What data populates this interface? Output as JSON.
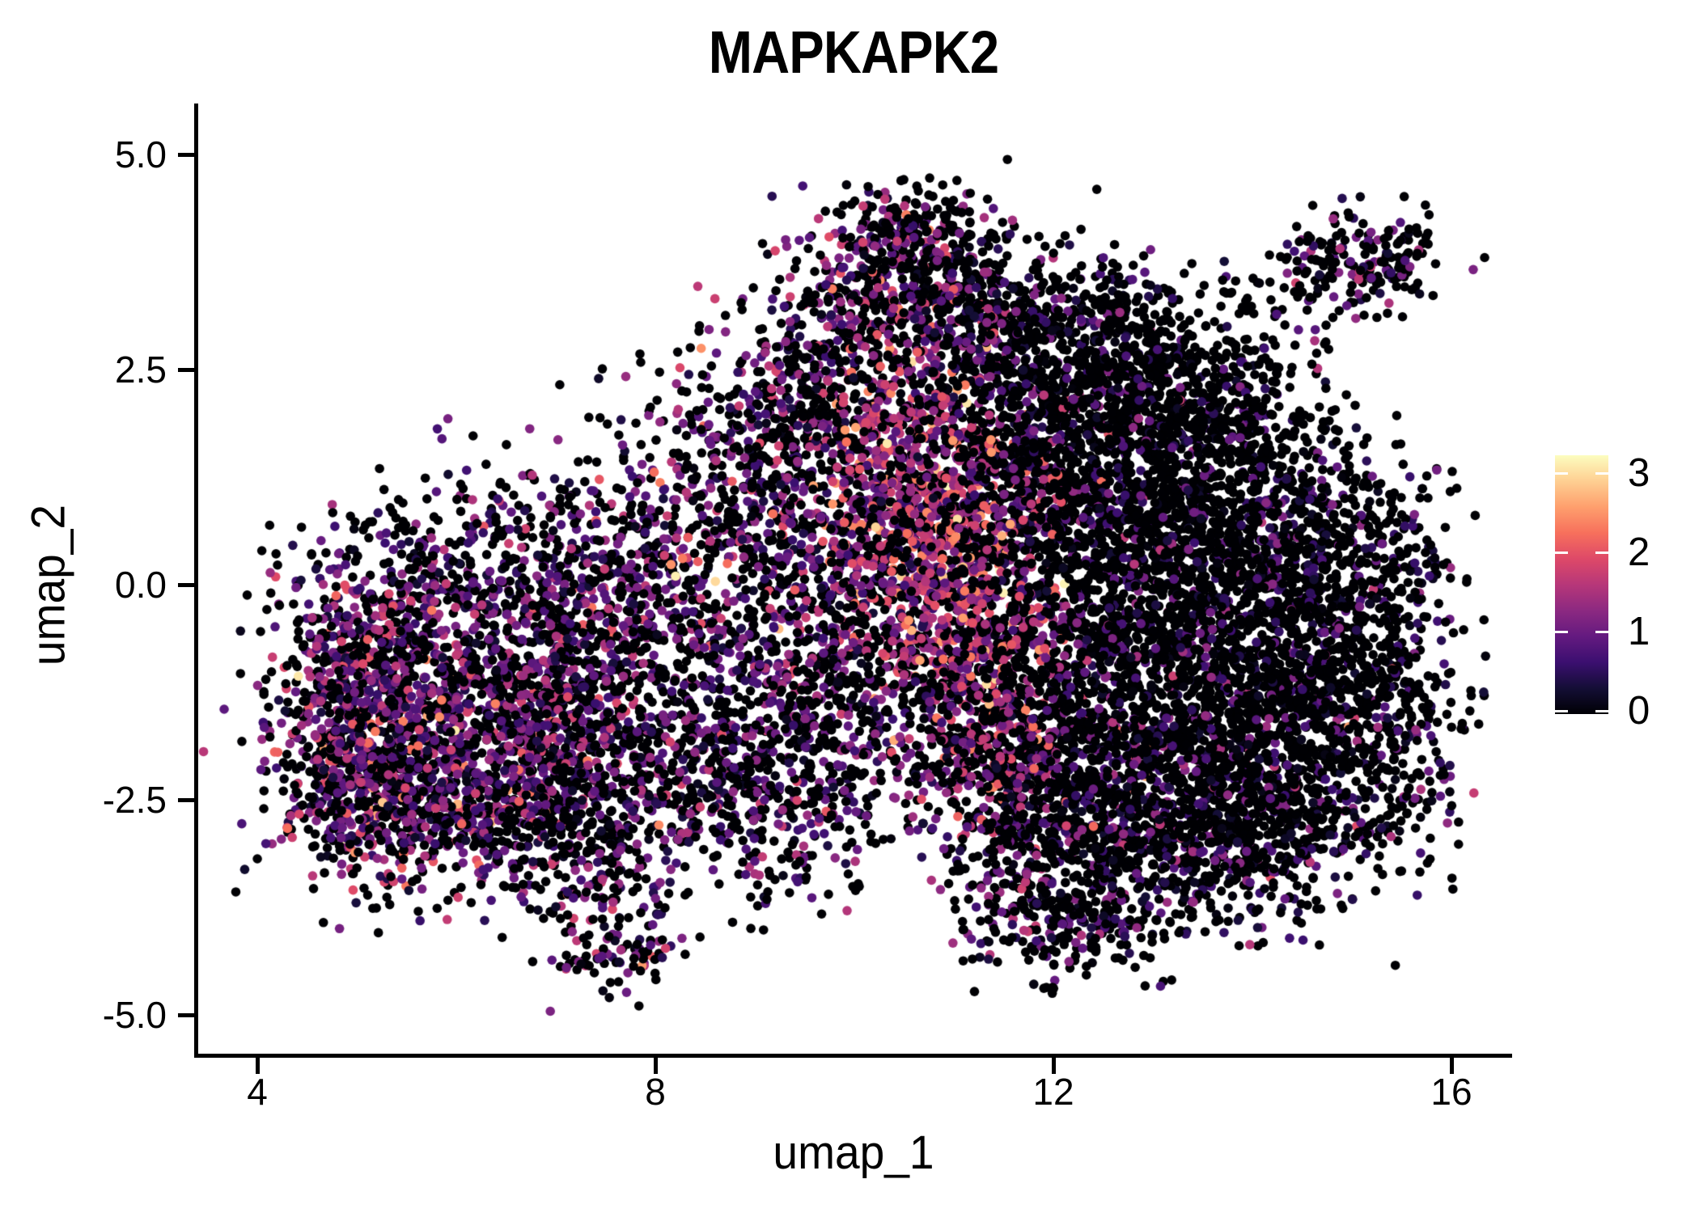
{
  "figure": {
    "background": "#ffffff",
    "text_color": "#000000"
  },
  "chart_data": {
    "type": "scatter",
    "title": "MAPKAPK2",
    "xlabel": "umap_1",
    "ylabel": "umap_2",
    "xlim": [
      3.39,
      16.59
    ],
    "ylim": [
      -5.47,
      5.57
    ],
    "x_ticks": [
      4,
      8,
      12,
      16
    ],
    "x_tick_labels": [
      "4",
      "8",
      "12",
      "16"
    ],
    "y_ticks": [
      5.0,
      2.5,
      0.0,
      -2.5,
      -5.0
    ],
    "y_tick_labels": [
      "5.0",
      "2.5",
      "0.0",
      "-2.5",
      "-5.0"
    ],
    "grid": false,
    "legend_position": "right",
    "point_radius_px": 5.8,
    "seed": 7,
    "colorbar": {
      "title": "",
      "tick_values": [
        3,
        2,
        1,
        0
      ],
      "tick_labels": [
        "3",
        "2",
        "1",
        "0"
      ],
      "vmin": 0,
      "vmax": 3.17,
      "colormap": "magma",
      "stops": [
        [
          0.0,
          "#000004"
        ],
        [
          0.1,
          "#140e36"
        ],
        [
          0.2,
          "#3b0f70"
        ],
        [
          0.3,
          "#641a80"
        ],
        [
          0.4,
          "#8c2981"
        ],
        [
          0.5,
          "#b73779"
        ],
        [
          0.6,
          "#de4968"
        ],
        [
          0.7,
          "#f7705c"
        ],
        [
          0.8,
          "#fe9f6d"
        ],
        [
          0.9,
          "#fecf92"
        ],
        [
          1.0,
          "#fcfdbf"
        ]
      ]
    },
    "sampling_model": "UMAP feature plot: cells drawn from gaussian sub-clusters; x,y = cluster center (umap coords), sx,sy = spread, n = cells, p0 = fraction with zero expression, mu/sigma = expression level distribution (color scale 0-3)",
    "clusters": [
      {
        "x": 5.55,
        "y": -1.6,
        "sx": 0.75,
        "sy": 0.75,
        "n": 650,
        "p0": 0.4,
        "mu": 1.05,
        "sigma": 0.55
      },
      {
        "x": 6.55,
        "y": -1.1,
        "sx": 0.75,
        "sy": 0.8,
        "n": 600,
        "p0": 0.45,
        "mu": 1.0,
        "sigma": 0.55
      },
      {
        "x": 5.2,
        "y": -0.55,
        "sx": 0.5,
        "sy": 0.5,
        "n": 280,
        "p0": 0.52,
        "mu": 0.95,
        "sigma": 0.5
      },
      {
        "x": 4.95,
        "y": -2.45,
        "sx": 0.4,
        "sy": 0.5,
        "n": 260,
        "p0": 0.45,
        "mu": 1.05,
        "sigma": 0.6
      },
      {
        "x": 6.1,
        "y": -2.7,
        "sx": 0.65,
        "sy": 0.5,
        "n": 420,
        "p0": 0.45,
        "mu": 0.95,
        "sigma": 0.55
      },
      {
        "x": 7.2,
        "y": -2.1,
        "sx": 0.55,
        "sy": 0.6,
        "n": 330,
        "p0": 0.5,
        "mu": 0.9,
        "sigma": 0.5
      },
      {
        "x": 7.3,
        "y": -0.4,
        "sx": 0.6,
        "sy": 0.7,
        "n": 340,
        "p0": 0.52,
        "mu": 0.9,
        "sigma": 0.5
      },
      {
        "x": 6.3,
        "y": 0.4,
        "sx": 0.9,
        "sy": 0.5,
        "n": 260,
        "p0": 0.62,
        "mu": 0.8,
        "sigma": 0.45
      },
      {
        "x": 5.0,
        "y": -1.5,
        "sx": 0.35,
        "sy": 0.6,
        "n": 180,
        "p0": 0.42,
        "mu": 1.1,
        "sigma": 0.6
      },
      {
        "x": 7.35,
        "y": -3.5,
        "sx": 0.3,
        "sy": 0.4,
        "n": 100,
        "p0": 0.5,
        "mu": 0.95,
        "sigma": 0.55
      },
      {
        "x": 7.6,
        "y": -4.3,
        "sx": 0.35,
        "sy": 0.22,
        "n": 80,
        "p0": 0.52,
        "mu": 0.9,
        "sigma": 0.55
      },
      {
        "x": 8.4,
        "y": -0.7,
        "sx": 0.7,
        "sy": 1.1,
        "n": 520,
        "p0": 0.55,
        "mu": 0.85,
        "sigma": 0.5
      },
      {
        "x": 8.3,
        "y": -2.45,
        "sx": 0.75,
        "sy": 0.6,
        "n": 380,
        "p0": 0.58,
        "mu": 0.8,
        "sigma": 0.5
      },
      {
        "x": 8.85,
        "y": 1.2,
        "sx": 0.65,
        "sy": 0.8,
        "n": 340,
        "p0": 0.5,
        "mu": 1.0,
        "sigma": 0.55
      },
      {
        "x": 9.5,
        "y": -2.0,
        "sx": 0.55,
        "sy": 0.8,
        "n": 350,
        "p0": 0.55,
        "mu": 0.85,
        "sigma": 0.5
      },
      {
        "x": 10.6,
        "y": 4.1,
        "sx": 0.38,
        "sy": 0.28,
        "n": 190,
        "p0": 0.6,
        "mu": 1.0,
        "sigma": 0.55
      },
      {
        "x": 10.1,
        "y": 3.3,
        "sx": 0.5,
        "sy": 0.45,
        "n": 260,
        "p0": 0.5,
        "mu": 1.1,
        "sigma": 0.6
      },
      {
        "x": 10.9,
        "y": 3.35,
        "sx": 0.45,
        "sy": 0.45,
        "n": 240,
        "p0": 0.62,
        "mu": 0.9,
        "sigma": 0.5
      },
      {
        "x": 9.6,
        "y": 2.3,
        "sx": 0.5,
        "sy": 0.55,
        "n": 260,
        "p0": 0.52,
        "mu": 1.05,
        "sigma": 0.55
      },
      {
        "x": 11.5,
        "y": 2.9,
        "sx": 0.45,
        "sy": 0.5,
        "n": 240,
        "p0": 0.68,
        "mu": 0.8,
        "sigma": 0.5
      },
      {
        "x": 10.55,
        "y": 1.6,
        "sx": 0.5,
        "sy": 0.65,
        "n": 440,
        "p0": 0.3,
        "mu": 1.5,
        "sigma": 0.55
      },
      {
        "x": 10.9,
        "y": 0.45,
        "sx": 0.5,
        "sy": 0.75,
        "n": 520,
        "p0": 0.28,
        "mu": 1.55,
        "sigma": 0.55
      },
      {
        "x": 11.15,
        "y": -0.75,
        "sx": 0.5,
        "sy": 0.65,
        "n": 440,
        "p0": 0.35,
        "mu": 1.4,
        "sigma": 0.55
      },
      {
        "x": 11.3,
        "y": -1.85,
        "sx": 0.5,
        "sy": 0.55,
        "n": 360,
        "p0": 0.42,
        "mu": 1.2,
        "sigma": 0.55
      },
      {
        "x": 10.1,
        "y": 0.3,
        "sx": 0.55,
        "sy": 0.8,
        "n": 380,
        "p0": 0.48,
        "mu": 1.1,
        "sigma": 0.6
      },
      {
        "x": 11.6,
        "y": 1.4,
        "sx": 0.4,
        "sy": 0.6,
        "n": 280,
        "p0": 0.5,
        "mu": 1.1,
        "sigma": 0.6
      },
      {
        "x": 12.35,
        "y": 1.6,
        "sx": 0.75,
        "sy": 0.8,
        "n": 620,
        "p0": 0.8,
        "mu": 0.6,
        "sigma": 0.4
      },
      {
        "x": 13.4,
        "y": 1.2,
        "sx": 0.75,
        "sy": 0.8,
        "n": 620,
        "p0": 0.82,
        "mu": 0.6,
        "sigma": 0.4
      },
      {
        "x": 12.5,
        "y": 0.0,
        "sx": 0.75,
        "sy": 0.85,
        "n": 700,
        "p0": 0.78,
        "mu": 0.65,
        "sigma": 0.45
      },
      {
        "x": 13.7,
        "y": -0.3,
        "sx": 0.75,
        "sy": 0.85,
        "n": 700,
        "p0": 0.8,
        "mu": 0.6,
        "sigma": 0.45
      },
      {
        "x": 12.6,
        "y": -1.6,
        "sx": 0.8,
        "sy": 0.75,
        "n": 700,
        "p0": 0.75,
        "mu": 0.7,
        "sigma": 0.45
      },
      {
        "x": 13.8,
        "y": -1.9,
        "sx": 0.7,
        "sy": 0.7,
        "n": 600,
        "p0": 0.78,
        "mu": 0.65,
        "sigma": 0.45
      },
      {
        "x": 12.9,
        "y": -3.0,
        "sx": 0.85,
        "sy": 0.55,
        "n": 520,
        "p0": 0.74,
        "mu": 0.7,
        "sigma": 0.45
      },
      {
        "x": 14.7,
        "y": 0.4,
        "sx": 0.55,
        "sy": 0.75,
        "n": 380,
        "p0": 0.8,
        "mu": 0.6,
        "sigma": 0.4
      },
      {
        "x": 14.8,
        "y": -1.3,
        "sx": 0.55,
        "sy": 0.65,
        "n": 340,
        "p0": 0.8,
        "mu": 0.6,
        "sigma": 0.4
      },
      {
        "x": 12.3,
        "y": 2.7,
        "sx": 0.65,
        "sy": 0.45,
        "n": 300,
        "p0": 0.76,
        "mu": 0.65,
        "sigma": 0.45
      },
      {
        "x": 13.5,
        "y": 2.2,
        "sx": 0.55,
        "sy": 0.45,
        "n": 260,
        "p0": 0.8,
        "mu": 0.6,
        "sigma": 0.4
      },
      {
        "x": 11.9,
        "y": -2.9,
        "sx": 0.55,
        "sy": 0.55,
        "n": 300,
        "p0": 0.62,
        "mu": 0.85,
        "sigma": 0.5
      },
      {
        "x": 12.2,
        "y": -3.9,
        "sx": 0.6,
        "sy": 0.33,
        "n": 220,
        "p0": 0.7,
        "mu": 0.75,
        "sigma": 0.45
      },
      {
        "x": 15.5,
        "y": -0.6,
        "sx": 0.38,
        "sy": 0.9,
        "n": 190,
        "p0": 0.76,
        "mu": 0.65,
        "sigma": 0.45
      },
      {
        "x": 15.3,
        "y": -2.3,
        "sx": 0.45,
        "sy": 0.55,
        "n": 150,
        "p0": 0.72,
        "mu": 0.7,
        "sigma": 0.45
      },
      {
        "x": 12.9,
        "y": 3.3,
        "sx": 0.8,
        "sy": 0.35,
        "n": 110,
        "p0": 0.85,
        "mu": 0.6,
        "sigma": 0.4
      },
      {
        "x": 14.1,
        "y": -3.0,
        "sx": 0.5,
        "sy": 0.5,
        "n": 260,
        "p0": 0.75,
        "mu": 0.65,
        "sigma": 0.45
      },
      {
        "x": 15.1,
        "y": 3.8,
        "sx": 0.42,
        "sy": 0.28,
        "n": 190,
        "p0": 0.7,
        "mu": 0.8,
        "sigma": 0.5
      },
      {
        "x": 14.5,
        "y": 3.0,
        "sx": 0.25,
        "sy": 0.35,
        "n": 14,
        "p0": 0.8,
        "mu": 0.6,
        "sigma": 0.4
      },
      {
        "x": 9.3,
        "y": 0.9,
        "sx": 0.5,
        "sy": 0.9,
        "n": 150,
        "p0": 0.6,
        "mu": 0.8,
        "sigma": 0.5
      },
      {
        "x": 9.9,
        "y": -1.2,
        "sx": 0.45,
        "sy": 0.7,
        "n": 180,
        "p0": 0.55,
        "mu": 0.9,
        "sigma": 0.5
      }
    ]
  }
}
